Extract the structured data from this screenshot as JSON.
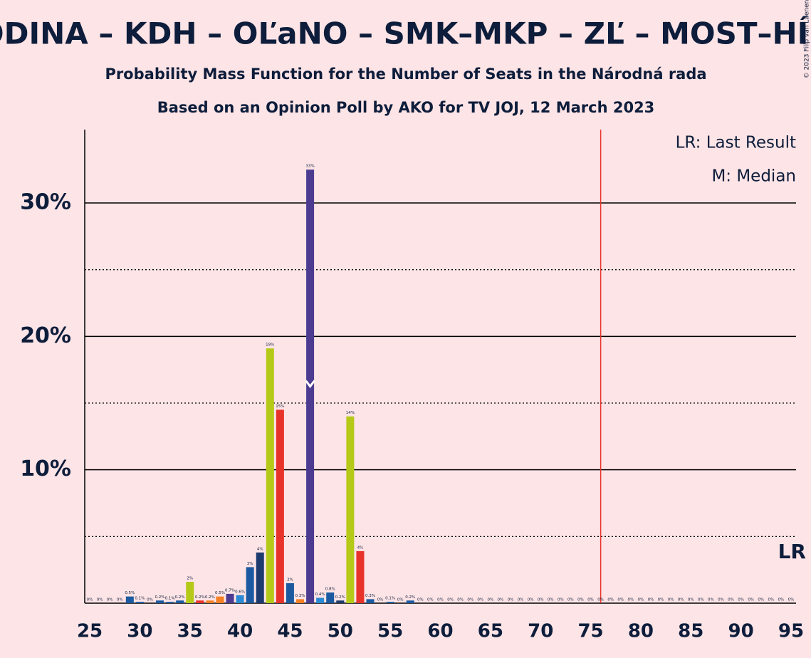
{
  "chart_data": {
    "type": "bar",
    "title": "ODINA – KDH – OĽaNO – SMK–MKP – ZĽ – MOST–HÍD",
    "subtitle": "Probability Mass Function for the Number of Seats in the Národná rada",
    "subtitle2": "Based on an Opinion Poll by AKO for TV JOJ, 12 March 2023",
    "copyright": "© 2023 Filip van Laenen",
    "legend": [
      "LR: Last Result",
      "M: Median"
    ],
    "last_result_label": "LR",
    "last_result": 76,
    "median": 47,
    "x": [
      25,
      26,
      27,
      28,
      29,
      30,
      31,
      32,
      33,
      34,
      35,
      36,
      37,
      38,
      39,
      40,
      41,
      42,
      43,
      44,
      45,
      46,
      47,
      48,
      49,
      50,
      51,
      52,
      53,
      54,
      55,
      56,
      57,
      58,
      59,
      60,
      61,
      62,
      63,
      64,
      65,
      66,
      67,
      68,
      69,
      70,
      71,
      72,
      73,
      74,
      75,
      76,
      77,
      78,
      79,
      80,
      81,
      82,
      83,
      84,
      85,
      86,
      87,
      88,
      89,
      90,
      91,
      92,
      93,
      94,
      95
    ],
    "values": [
      0,
      0,
      0,
      0,
      0.5,
      0.1,
      0,
      0.2,
      0.1,
      0.2,
      1.6,
      0.2,
      0.2,
      0.5,
      0.7,
      0.6,
      2.7,
      3.8,
      19.1,
      14.5,
      1.5,
      0.3,
      32.5,
      0.4,
      0.8,
      0.2,
      14,
      3.9,
      0.3,
      0,
      0.1,
      0,
      0.2,
      0,
      0,
      0,
      0,
      0,
      0,
      0,
      0,
      0,
      0,
      0,
      0,
      0,
      0,
      0,
      0,
      0,
      0,
      0,
      0,
      0,
      0,
      0,
      0,
      0,
      0,
      0,
      0,
      0,
      0,
      0,
      0,
      0,
      0,
      0,
      0,
      0,
      0
    ],
    "value_labels": [
      "0%",
      "0%",
      "0%",
      "0%",
      "0.5%",
      "0.1%",
      "0%",
      "0.2%",
      "0.1%",
      "0.2%",
      "2%",
      "0.2%",
      "0.2%",
      "0.5%",
      "0.7%",
      "0.6%",
      "3%",
      "4%",
      "19%",
      "15%",
      "2%",
      "0.3%",
      "33%",
      "0.4%",
      "0.8%",
      "0.2%",
      "14%",
      "4%",
      "0.3%",
      "0%",
      "0.1%",
      "0%",
      "0.2%",
      "0%",
      "0%",
      "0%",
      "0%",
      "0%",
      "0%",
      "0%",
      "0%",
      "0%",
      "0%",
      "0%",
      "0%",
      "0%",
      "0%",
      "0%",
      "0%",
      "0%",
      "0%",
      "0%",
      "0%",
      "0%",
      "0%",
      "0%",
      "0%",
      "0%",
      "0%",
      "0%",
      "0%",
      "0%",
      "0%",
      "0%",
      "0%",
      "0%",
      "0%",
      "0%",
      "0%",
      "0%",
      "0%"
    ],
    "colors": [
      "#1b5aa0",
      "#1b5aa0",
      "#1b5aa0",
      "#1b5aa0",
      "#1b5aa0",
      "#1b5aa0",
      "#1b5aa0",
      "#1b5aa0",
      "#1b5aa0",
      "#1b5aa0",
      "#b5c918",
      "#e8332b",
      "#f58025",
      "#f58025",
      "#4c3b91",
      "#2a8ad4",
      "#1b5aa0",
      "#1d3b6e",
      "#b5c918",
      "#e8332b",
      "#1b5aa0",
      "#f58025",
      "#4c3b91",
      "#2a8ad4",
      "#1b5aa0",
      "#1d3b6e",
      "#b5c918",
      "#e8332b",
      "#1b5aa0",
      "#1b5aa0",
      "#1b5aa0",
      "#1b5aa0",
      "#1b5aa0",
      "#1b5aa0",
      "#1b5aa0",
      "#1b5aa0",
      "#1b5aa0",
      "#1b5aa0",
      "#1b5aa0",
      "#1b5aa0",
      "#1b5aa0",
      "#1b5aa0",
      "#1b5aa0",
      "#1b5aa0",
      "#1b5aa0",
      "#1b5aa0",
      "#1b5aa0",
      "#1b5aa0",
      "#1b5aa0",
      "#1b5aa0",
      "#1b5aa0",
      "#1b5aa0",
      "#1b5aa0",
      "#1b5aa0",
      "#1b5aa0",
      "#1b5aa0",
      "#1b5aa0",
      "#1b5aa0",
      "#1b5aa0",
      "#1b5aa0",
      "#1b5aa0",
      "#1b5aa0",
      "#1b5aa0",
      "#1b5aa0",
      "#1b5aa0",
      "#1b5aa0",
      "#1b5aa0",
      "#1b5aa0",
      "#1b5aa0",
      "#1b5aa0",
      "#1b5aa0"
    ],
    "xlim": [
      24.5,
      95.5
    ],
    "xticks": [
      25,
      30,
      35,
      40,
      45,
      50,
      55,
      60,
      65,
      70,
      75,
      80,
      85,
      90,
      95
    ],
    "ylim": [
      0,
      35.5
    ],
    "yticks": [
      {
        "value": 10,
        "label": "10%"
      },
      {
        "value": 20,
        "label": "20%"
      },
      {
        "value": 30,
        "label": "30%"
      }
    ],
    "minor_yticks": [
      5,
      15,
      25
    ],
    "grid": true,
    "last_result_color": "#e8332b"
  }
}
